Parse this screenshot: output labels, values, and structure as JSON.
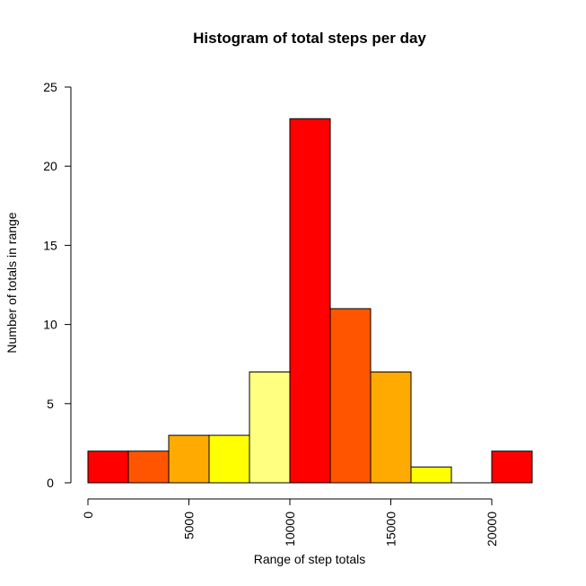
{
  "chart_data": {
    "type": "bar",
    "title": "Histogram of total steps per day",
    "xlabel": "Range of step totals",
    "ylabel": "Number of totals in range",
    "bin_edges": [
      0,
      2000,
      4000,
      6000,
      8000,
      10000,
      12000,
      14000,
      16000,
      18000,
      20000,
      22000
    ],
    "values": [
      2,
      2,
      3,
      3,
      7,
      23,
      11,
      7,
      1,
      0,
      2
    ],
    "bar_colors": [
      "#FF0000",
      "#FF5500",
      "#FFAA00",
      "#FFFF00",
      "#FFFF80",
      "#FF0000",
      "#FF5500",
      "#FFAA00",
      "#FFFF00",
      "#FFFF80",
      "#FF0000"
    ],
    "xlim": [
      0,
      22000
    ],
    "ylim": [
      0,
      25
    ],
    "x_ticks": [
      0,
      5000,
      10000,
      15000,
      20000
    ],
    "x_tick_labels": [
      "0",
      "5000",
      "10000",
      "15000",
      "20000"
    ],
    "y_ticks": [
      0,
      5,
      10,
      15,
      20,
      25
    ],
    "y_tick_labels": [
      "0",
      "5",
      "10",
      "15",
      "20",
      "25"
    ],
    "grid": false,
    "legend": "none"
  }
}
